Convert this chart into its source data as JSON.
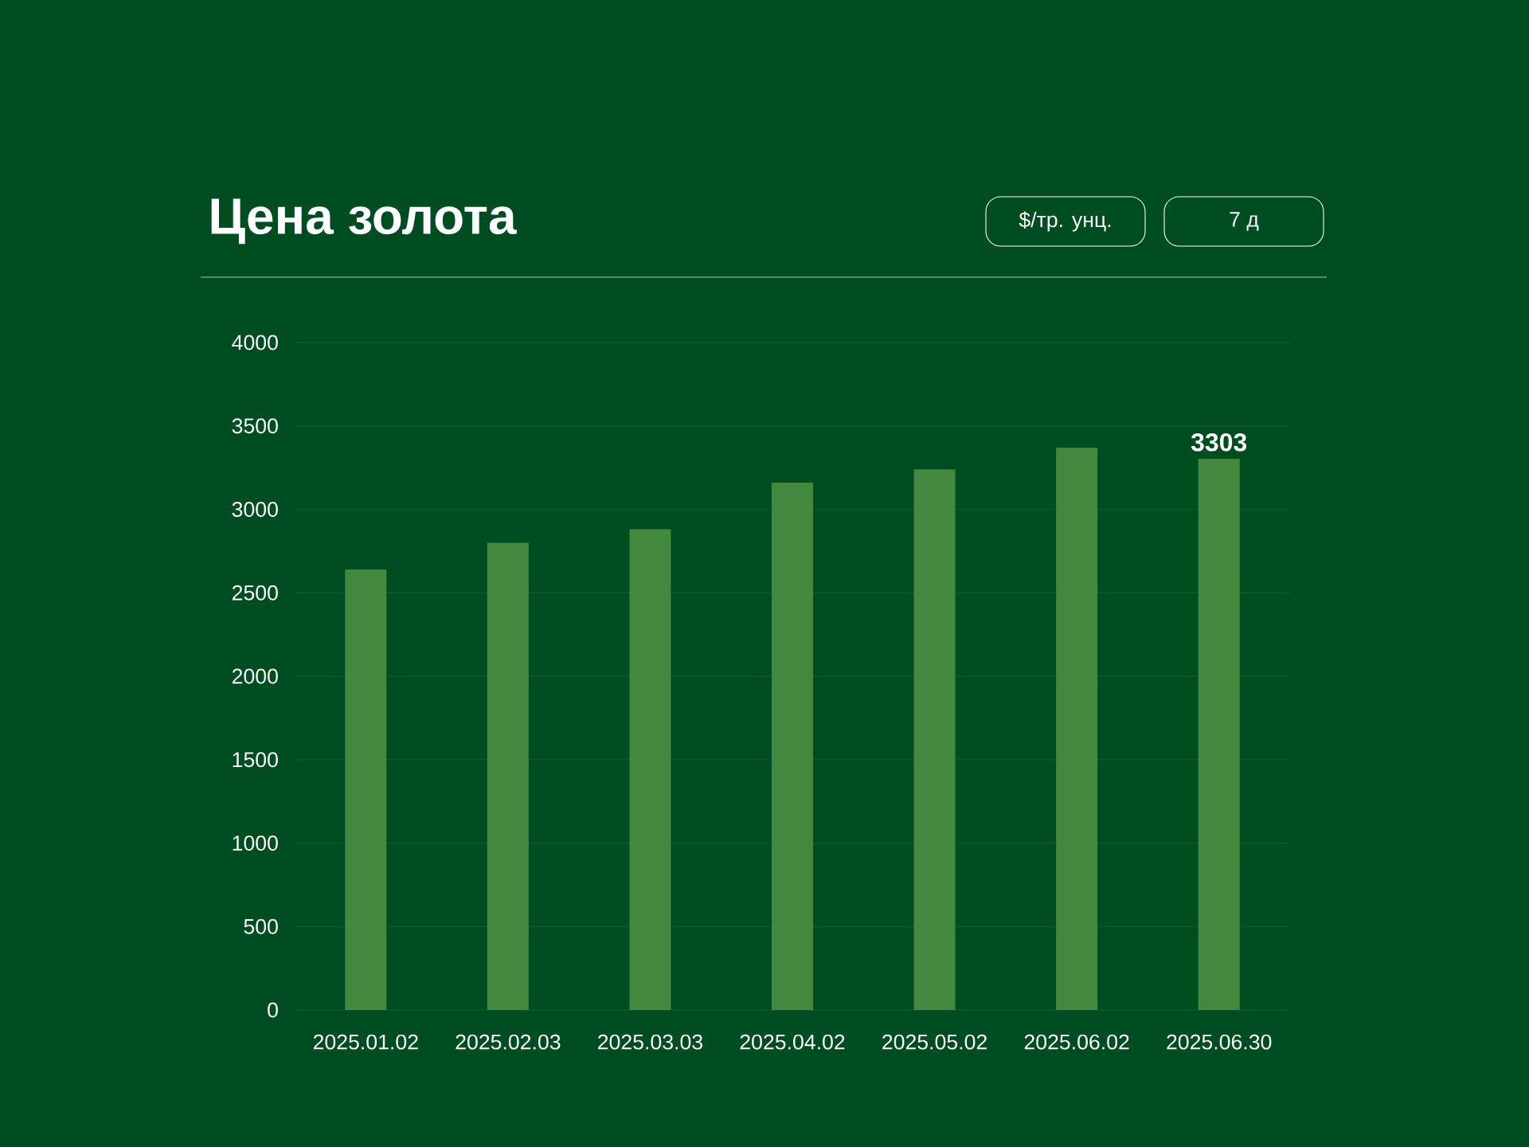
{
  "chart_data": {
    "type": "bar",
    "title": "Цена золота",
    "annotations": [
      "$/тр. унц.",
      "7 д"
    ],
    "categories": [
      "2025.01.02",
      "2025.02.03",
      "2025.03.03",
      "2025.04.02",
      "2025.05.02",
      "2025.06.02",
      "2025.06.30"
    ],
    "values": [
      2640,
      2800,
      2880,
      3160,
      3240,
      3370,
      3303
    ],
    "value_labels": [
      null,
      null,
      null,
      null,
      null,
      null,
      "3303"
    ],
    "color": "#43883f",
    "ylim": [
      0,
      4000
    ],
    "yticks": [
      0,
      500,
      1000,
      1500,
      2000,
      2500,
      3000,
      3500,
      4000
    ],
    "grid": "y"
  }
}
